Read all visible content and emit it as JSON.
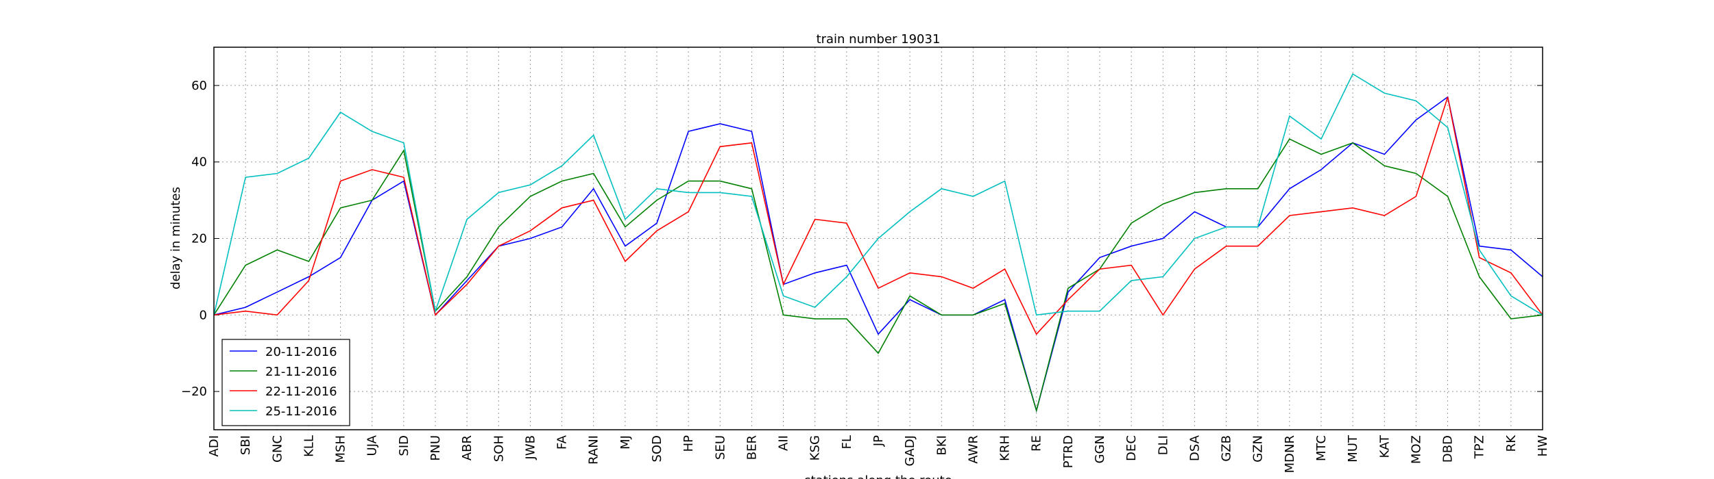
{
  "chart_data": {
    "type": "line",
    "title": "train number 19031",
    "x_label": "stations along the route",
    "y_label": "delay in minutes",
    "categories": [
      "ADI",
      "SBI",
      "GNC",
      "KLL",
      "MSH",
      "UJA",
      "SID",
      "PNU",
      "ABR",
      "SOH",
      "JWB",
      "FA",
      "RANI",
      "MJ",
      "SOD",
      "HP",
      "SEU",
      "BER",
      "AII",
      "KSG",
      "FL",
      "JP",
      "GADJ",
      "BKI",
      "AWR",
      "KRH",
      "RE",
      "PTRD",
      "GGN",
      "DEC",
      "DLI",
      "DSA",
      "GZB",
      "GZN",
      "MDNR",
      "MTC",
      "MUT",
      "KAT",
      "MOZ",
      "DBD",
      "TPZ",
      "RK",
      "HW"
    ],
    "series": [
      {
        "name": "20-11-2016",
        "color": "#0000ff",
        "values": [
          0,
          2,
          6,
          10,
          15,
          30,
          35,
          0,
          9,
          18,
          20,
          23,
          33,
          18,
          24,
          48,
          50,
          48,
          8,
          11,
          13,
          -5,
          4,
          0,
          0,
          4,
          -25,
          6,
          15,
          18,
          20,
          27,
          23,
          23,
          33,
          38,
          45,
          42,
          51,
          57,
          18,
          17,
          10
        ]
      },
      {
        "name": "21-11-2016",
        "color": "#008000",
        "values": [
          0,
          13,
          17,
          14,
          28,
          30,
          43,
          1,
          10,
          23,
          31,
          35,
          37,
          23,
          30,
          35,
          35,
          33,
          0,
          -1,
          -1,
          -10,
          5,
          0,
          0,
          3,
          -25,
          7,
          12,
          24,
          29,
          32,
          33,
          33,
          46,
          42,
          45,
          39,
          37,
          31,
          10,
          -1,
          0
        ]
      },
      {
        "name": "22-11-2016",
        "color": "#ff0000",
        "values": [
          0,
          1,
          0,
          9,
          35,
          38,
          36,
          0,
          8,
          18,
          22,
          28,
          30,
          14,
          22,
          27,
          44,
          45,
          8,
          25,
          24,
          7,
          11,
          10,
          7,
          12,
          -5,
          4,
          12,
          13,
          0,
          12,
          18,
          18,
          26,
          27,
          28,
          26,
          31,
          57,
          15,
          11,
          0
        ]
      },
      {
        "name": "25-11-2016",
        "color": "#00bfbf",
        "values": [
          0,
          36,
          37,
          41,
          53,
          48,
          45,
          1,
          25,
          32,
          34,
          39,
          47,
          25,
          33,
          32,
          32,
          31,
          5,
          2,
          10,
          20,
          27,
          33,
          31,
          35,
          0,
          1,
          1,
          9,
          10,
          20,
          23,
          23,
          52,
          46,
          63,
          58,
          56,
          49,
          17,
          5,
          0
        ]
      }
    ],
    "ylim": [
      -30,
      70
    ],
    "yticks": [
      {
        "value": -20,
        "label": "−20"
      },
      0,
      20,
      40,
      60
    ],
    "grid": true,
    "legend": "lower left"
  }
}
